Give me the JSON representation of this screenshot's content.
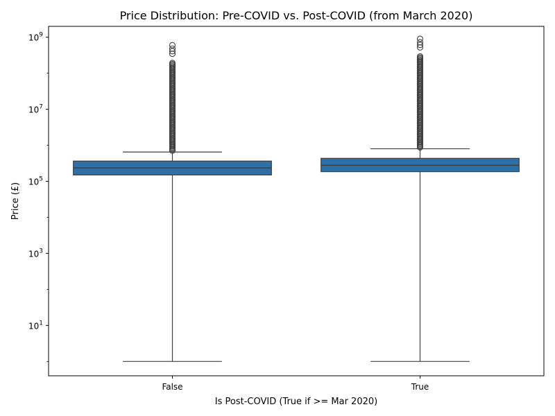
{
  "chart_data": {
    "type": "box",
    "title": "Price Distribution: Pre-COVID vs. Post-COVID (from March 2020)",
    "xlabel": "Is Post-COVID (True if >= Mar 2020)",
    "ylabel": "Price (£)",
    "yscale": "log",
    "ylim": [
      0.4,
      2000000000
    ],
    "categories": [
      "False",
      "True"
    ],
    "y_ticks": [
      {
        "value": 10,
        "base": "10",
        "exp": "1"
      },
      {
        "value": 1000,
        "base": "10",
        "exp": "3"
      },
      {
        "value": 100000,
        "base": "10",
        "exp": "5"
      },
      {
        "value": 10000000,
        "base": "10",
        "exp": "7"
      },
      {
        "value": 1000000000,
        "base": "10",
        "exp": "9"
      }
    ],
    "boxes": [
      {
        "category": "False",
        "whisker_low": 1,
        "q1": 150000,
        "median": 235000,
        "q3": 365000,
        "whisker_high": 650000,
        "outlier_min": 650000,
        "outlier_max": 600000000
      },
      {
        "category": "True",
        "whisker_low": 1,
        "q1": 185000,
        "median": 280000,
        "q3": 435000,
        "whisker_high": 800000,
        "outlier_min": 800000,
        "outlier_max": 900000000
      }
    ],
    "box_color": "#2d6fa8",
    "line_color": "#3f3f3f",
    "grid": false,
    "legend": "none"
  }
}
